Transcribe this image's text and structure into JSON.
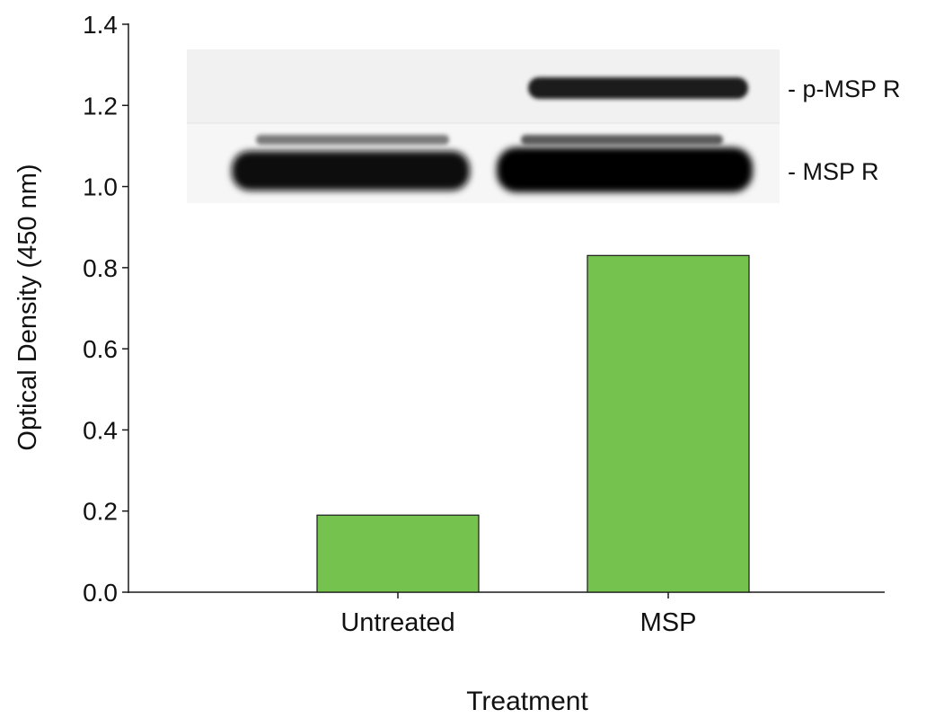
{
  "chart_data": {
    "type": "bar",
    "title": "",
    "xlabel": "Treatment",
    "ylabel": "Optical Density (450 nm)",
    "categories": [
      "Untreated",
      "MSP"
    ],
    "values": [
      0.19,
      0.83
    ],
    "ylim": [
      0,
      1.4
    ],
    "yticks": [
      "0.0",
      "0.2",
      "0.4",
      "0.6",
      "0.8",
      "1.0",
      "1.2",
      "1.4"
    ],
    "bar_color": "#76c24e",
    "grid": false,
    "blot_inset": {
      "lanes": [
        "Untreated",
        "MSP"
      ],
      "bands": [
        {
          "label": "- p-MSP R"
        },
        {
          "label": "- MSP R"
        }
      ]
    }
  }
}
